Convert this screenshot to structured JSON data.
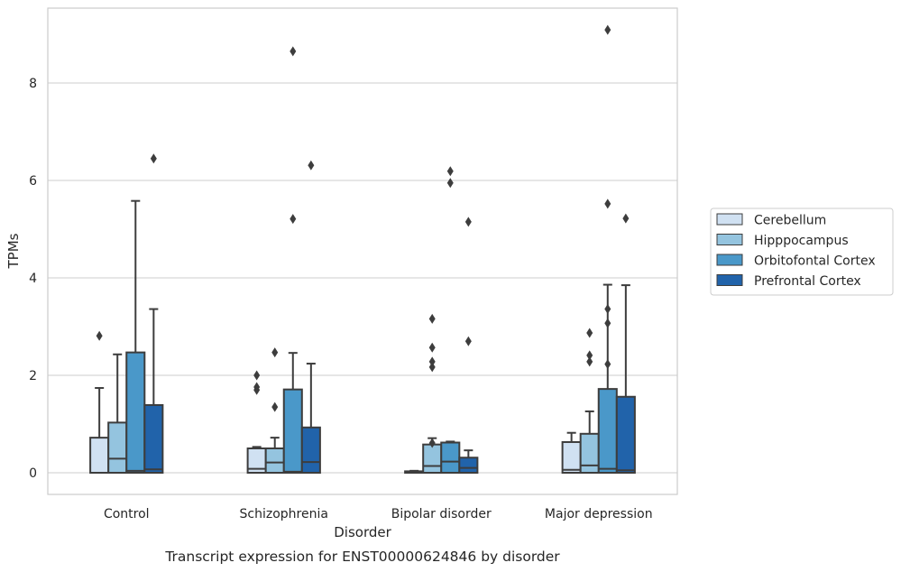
{
  "chart_data": {
    "type": "box",
    "title": "Transcript expression for ENST00000624846 by disorder",
    "xlabel": "Disorder",
    "ylabel": "TPMs",
    "ylim": [
      -0.45,
      9.6
    ],
    "yticks": [
      0,
      2,
      4,
      6,
      8
    ],
    "grid": "horizontal",
    "legend_position": "right",
    "categories": [
      "Control",
      "Schizophrenia",
      "Bipolar disorder",
      "Major depression"
    ],
    "series": [
      {
        "name": "Cerebellum",
        "color": "#d0e1f2",
        "boxes": [
          {
            "q1": 0,
            "median": 0,
            "q3": 0.72,
            "whisker_low": 0,
            "whisker_high": 1.74,
            "outliers": [
              2.81
            ]
          },
          {
            "q1": 0,
            "median": 0.08,
            "q3": 0.5,
            "whisker_low": 0,
            "whisker_high": 0.53,
            "outliers": [
              1.7,
              1.76,
              2.0
            ]
          },
          {
            "q1": 0,
            "median": 0.02,
            "q3": 0.03,
            "whisker_low": 0,
            "whisker_high": 0.04,
            "outliers": []
          },
          {
            "q1": 0,
            "median": 0.06,
            "q3": 0.63,
            "whisker_low": 0,
            "whisker_high": 0.82,
            "outliers": []
          }
        ]
      },
      {
        "name": "Hipppocampus",
        "color": "#94c4df",
        "boxes": [
          {
            "q1": 0,
            "median": 0.29,
            "q3": 1.03,
            "whisker_low": 0,
            "whisker_high": 2.43,
            "outliers": []
          },
          {
            "q1": 0,
            "median": 0.21,
            "q3": 0.5,
            "whisker_low": 0,
            "whisker_high": 0.72,
            "outliers": [
              1.35,
              2.47
            ]
          },
          {
            "q1": 0,
            "median": 0.14,
            "q3": 0.58,
            "whisker_low": 0,
            "whisker_high": 0.71,
            "outliers": [
              0.61,
              2.17,
              2.28,
              2.57,
              3.16
            ]
          },
          {
            "q1": 0,
            "median": 0.15,
            "q3": 0.8,
            "whisker_low": 0,
            "whisker_high": 1.26,
            "outliers": [
              2.28,
              2.41,
              2.87
            ]
          }
        ]
      },
      {
        "name": "Orbitofontal Cortex",
        "color": "#4a98c9",
        "boxes": [
          {
            "q1": 0,
            "median": 0.04,
            "q3": 2.47,
            "whisker_low": 0,
            "whisker_high": 5.58,
            "outliers": []
          },
          {
            "q1": 0,
            "median": 0.02,
            "q3": 1.71,
            "whisker_low": 0,
            "whisker_high": 2.46,
            "outliers": [
              5.21,
              8.65
            ]
          },
          {
            "q1": 0,
            "median": 0.23,
            "q3": 0.62,
            "whisker_low": 0,
            "whisker_high": 0.64,
            "outliers": [
              5.95,
              6.19
            ]
          },
          {
            "q1": 0,
            "median": 0.08,
            "q3": 1.72,
            "whisker_low": 0,
            "whisker_high": 3.86,
            "outliers": [
              2.23,
              3.07,
              3.36,
              5.52,
              9.09
            ]
          }
        ]
      },
      {
        "name": "Prefrontal Cortex",
        "color": "#2163aa",
        "boxes": [
          {
            "q1": 0,
            "median": 0.07,
            "q3": 1.39,
            "whisker_low": 0,
            "whisker_high": 3.36,
            "outliers": [
              6.45
            ]
          },
          {
            "q1": 0,
            "median": 0.22,
            "q3": 0.93,
            "whisker_low": 0,
            "whisker_high": 2.24,
            "outliers": [
              6.31
            ]
          },
          {
            "q1": 0,
            "median": 0.1,
            "q3": 0.31,
            "whisker_low": 0,
            "whisker_high": 0.46,
            "outliers": [
              2.7,
              5.15
            ]
          },
          {
            "q1": 0,
            "median": 0.05,
            "q3": 1.56,
            "whisker_low": 0,
            "whisker_high": 3.85,
            "outliers": [
              5.22
            ]
          }
        ]
      }
    ]
  }
}
